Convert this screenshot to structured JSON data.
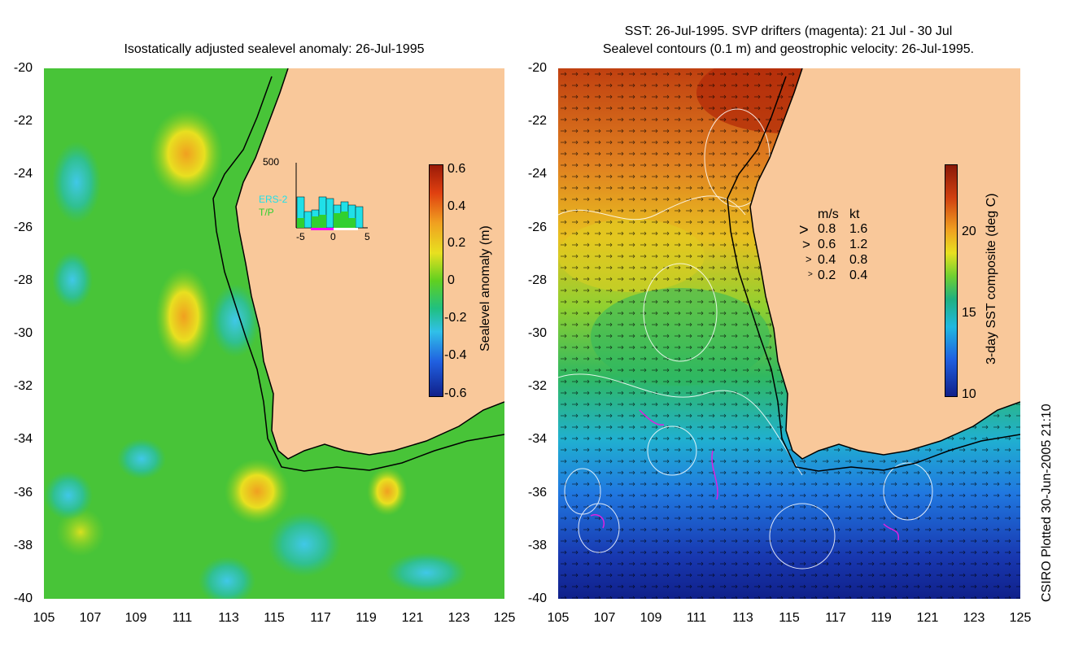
{
  "left_panel": {
    "title": "Isostatically adjusted sealevel anomaly: 26-Jul-1995",
    "y_ticks": [
      "-20",
      "-22",
      "-24",
      "-26",
      "-28",
      "-30",
      "-32",
      "-34",
      "-36",
      "-38",
      "-40"
    ],
    "x_ticks": [
      "105",
      "107",
      "109",
      "111",
      "113",
      "115",
      "117",
      "119",
      "121",
      "123",
      "125"
    ],
    "colorbar": {
      "label": "Sealevel anomaly (m)",
      "ticks": [
        "0.6",
        "0.4",
        "0.2",
        "0",
        "-0.2",
        "-0.4",
        "-0.6"
      ]
    },
    "inset": {
      "ymax_label": "500",
      "series": [
        "ERS-2",
        "T/P"
      ],
      "x_ticks": [
        "-5",
        "0",
        "5"
      ],
      "colors": {
        "ers2": "#20e0e8",
        "tp": "#30d030"
      }
    }
  },
  "right_panel": {
    "title_line1": "SST: 26-Jul-1995. SVP drifters (magenta): 21 Jul - 30 Jul",
    "title_line2": "Sealevel contours (0.1 m) and geostrophic velocity: 26-Jul-1995.",
    "y_ticks": [
      "-20",
      "-22",
      "-24",
      "-26",
      "-28",
      "-30",
      "-32",
      "-34",
      "-36",
      "-38",
      "-40"
    ],
    "x_ticks": [
      "105",
      "107",
      "109",
      "111",
      "113",
      "115",
      "117",
      "119",
      "121",
      "123",
      "125"
    ],
    "colorbar": {
      "label": "3-day SST composite (deg C)",
      "ticks": [
        "20",
        "15",
        "10"
      ]
    },
    "velocity_legend": {
      "header_ms": "m/s",
      "header_kt": "kt",
      "rows": [
        {
          "ms": "0.8",
          "kt": "1.6"
        },
        {
          "ms": "0.6",
          "kt": "1.2"
        },
        {
          "ms": "0.4",
          "kt": "0.8"
        },
        {
          "ms": "0.2",
          "kt": "0.4"
        }
      ]
    }
  },
  "credit": "CSIRO Plotted 30-Jun-2005 21:10",
  "colors": {
    "land": "#f9c89a",
    "ocean_left": "#40c040",
    "ocean_right": "#2070e0"
  }
}
